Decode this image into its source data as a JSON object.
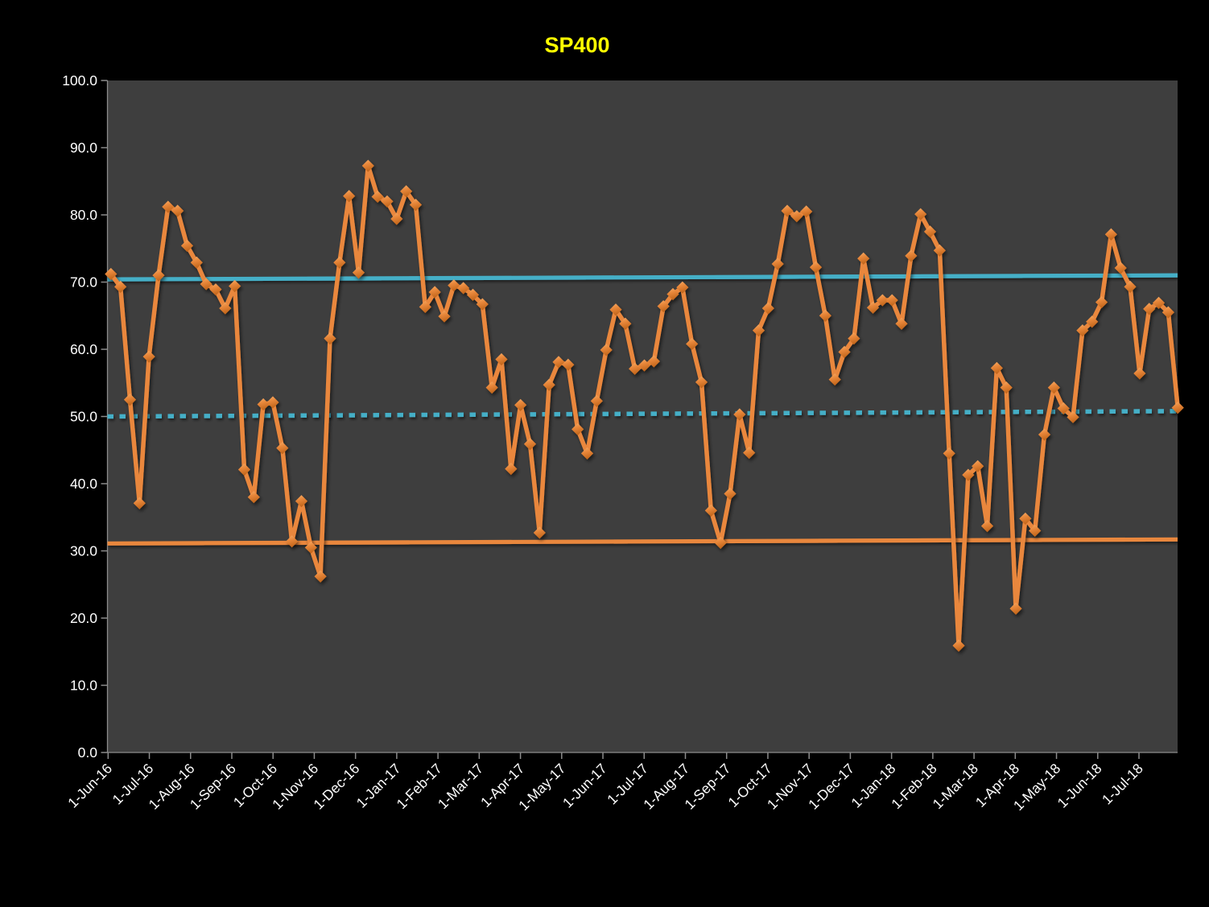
{
  "window": {
    "title": "SP400"
  },
  "chart_data": {
    "type": "line",
    "title": "SP400",
    "title_color": "#ffff00",
    "background_color": "#000000",
    "plot_background_color": "#3e3e3e",
    "axis_color": "#8c8c8c",
    "tick_label_color": "#ffffff",
    "grid": false,
    "legend_position": "none",
    "ylim": [
      0,
      100
    ],
    "y_ticks": [
      0,
      10,
      20,
      30,
      40,
      50,
      60,
      70,
      80,
      90,
      100
    ],
    "y_tick_labels": [
      "0.0",
      "10.0",
      "20.0",
      "30.0",
      "40.0",
      "50.0",
      "60.0",
      "70.0",
      "80.0",
      "90.0",
      "100.0"
    ],
    "x_tick_labels": [
      "1-Jun-16",
      "1-Jul-16",
      "1-Aug-16",
      "1-Sep-16",
      "1-Oct-16",
      "1-Nov-16",
      "1-Dec-16",
      "1-Jan-17",
      "1-Feb-17",
      "1-Mar-17",
      "1-Apr-17",
      "1-May-17",
      "1-Jun-17",
      "1-Jul-17",
      "1-Aug-17",
      "1-Sep-17",
      "1-Oct-17",
      "1-Nov-17",
      "1-Dec-17",
      "1-Jan-18",
      "1-Feb-18",
      "1-Mar-18",
      "1-Apr-18",
      "1-May-18",
      "1-Jun-18",
      "1-Jul-18"
    ],
    "x_unit": "weekly points starting 1-Jun-16, monthly axis labels",
    "series": [
      {
        "name": "SP400 weekly value",
        "kind": "line-with-markers",
        "marker": "diamond",
        "color": "#e9873e",
        "values": [
          71.2,
          69.3,
          52.5,
          37.1,
          58.9,
          71.0,
          81.2,
          80.6,
          75.4,
          72.9,
          69.7,
          68.9,
          66.1,
          69.4,
          42.1,
          38.0,
          51.8,
          52.1,
          45.3,
          31.4,
          37.4,
          30.5,
          26.2,
          61.6,
          72.9,
          82.8,
          71.4,
          87.3,
          82.7,
          82.0,
          79.4,
          83.5,
          81.5,
          66.3,
          68.5,
          64.9,
          69.5,
          69.1,
          68.1,
          66.7,
          54.3,
          58.5,
          42.2,
          51.7,
          45.9,
          32.7,
          54.7,
          58.1,
          57.7,
          48.1,
          44.5,
          52.3,
          59.9,
          65.9,
          63.8,
          57.1,
          57.6,
          58.2,
          66.4,
          68.2,
          69.2,
          60.8,
          55.1,
          36.0,
          31.2,
          38.5,
          50.3,
          44.6,
          62.8,
          66.1,
          72.7,
          80.6,
          79.8,
          80.5,
          72.2,
          65.0,
          55.5,
          59.6,
          61.6,
          73.5,
          66.2,
          67.3,
          67.3,
          63.8,
          73.9,
          80.1,
          77.5,
          74.7,
          44.5,
          15.9,
          41.3,
          42.6,
          33.7,
          57.2,
          54.3,
          21.4,
          34.8,
          33.0,
          47.3,
          54.3,
          51.2,
          49.9,
          62.8,
          64.1,
          67.0,
          77.1,
          72.1,
          69.3,
          56.4,
          66.0,
          66.9,
          65.5,
          51.3
        ]
      },
      {
        "name": "upper band",
        "kind": "reference-line",
        "style": "solid",
        "color": "#44afc7",
        "start": 70.4,
        "end": 71.0
      },
      {
        "name": "mid band",
        "kind": "reference-line",
        "style": "dotted",
        "color": "#44afc7",
        "start": 50.0,
        "end": 50.8
      },
      {
        "name": "lower band",
        "kind": "reference-line",
        "style": "solid",
        "color": "#e9873e",
        "start": 31.1,
        "end": 31.7
      }
    ]
  }
}
